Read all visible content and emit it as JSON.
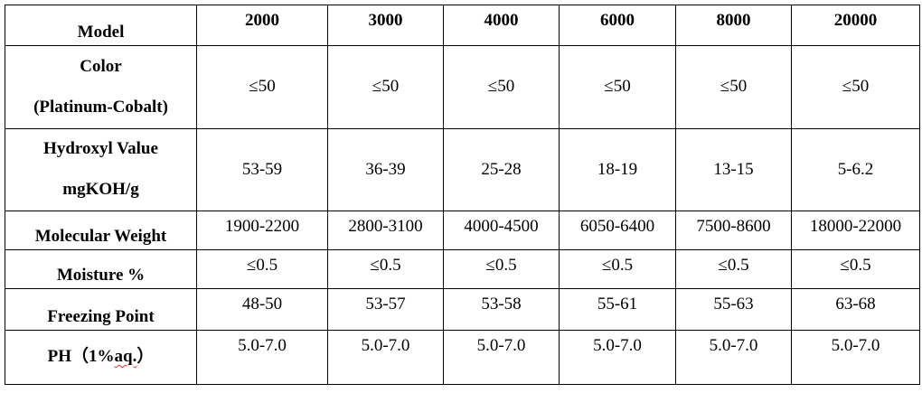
{
  "table": {
    "header": {
      "label": "Model",
      "columns": [
        "2000",
        "3000",
        "4000",
        "6000",
        "8000",
        "20000"
      ]
    },
    "rows": [
      {
        "label_line1": "Color",
        "label_line2": "(Platinum-Cobalt)",
        "values": [
          "≤50",
          "≤50",
          "≤50",
          "≤50",
          "≤50",
          "≤50"
        ]
      },
      {
        "label_line1": "Hydroxyl Value",
        "label_line2": "mgKOH/g",
        "values": [
          "53-59",
          "36-39",
          "25-28",
          "18-19",
          "13-15",
          "5-6.2"
        ]
      },
      {
        "label": "Molecular Weight",
        "values": [
          "1900-2200",
          "2800-3100",
          "4000-4500",
          "6050-6400",
          "7500-8600",
          "18000-22000"
        ]
      },
      {
        "label": "Moisture %",
        "values": [
          "≤0.5",
          "≤0.5",
          "≤0.5",
          "≤0.5",
          "≤0.5",
          "≤0.5"
        ]
      },
      {
        "label": "Freezing Point",
        "values": [
          "48-50",
          "53-57",
          "53-58",
          "55-61",
          "55-63",
          "63-68"
        ]
      },
      {
        "label_prefix": "PH（1%",
        "label_marked": "aq.",
        "label_suffix": "）",
        "values": [
          "5.0-7.0",
          "5.0-7.0",
          "5.0-7.0",
          "5.0-7.0",
          "5.0-7.0",
          "5.0-7.0"
        ]
      }
    ]
  }
}
